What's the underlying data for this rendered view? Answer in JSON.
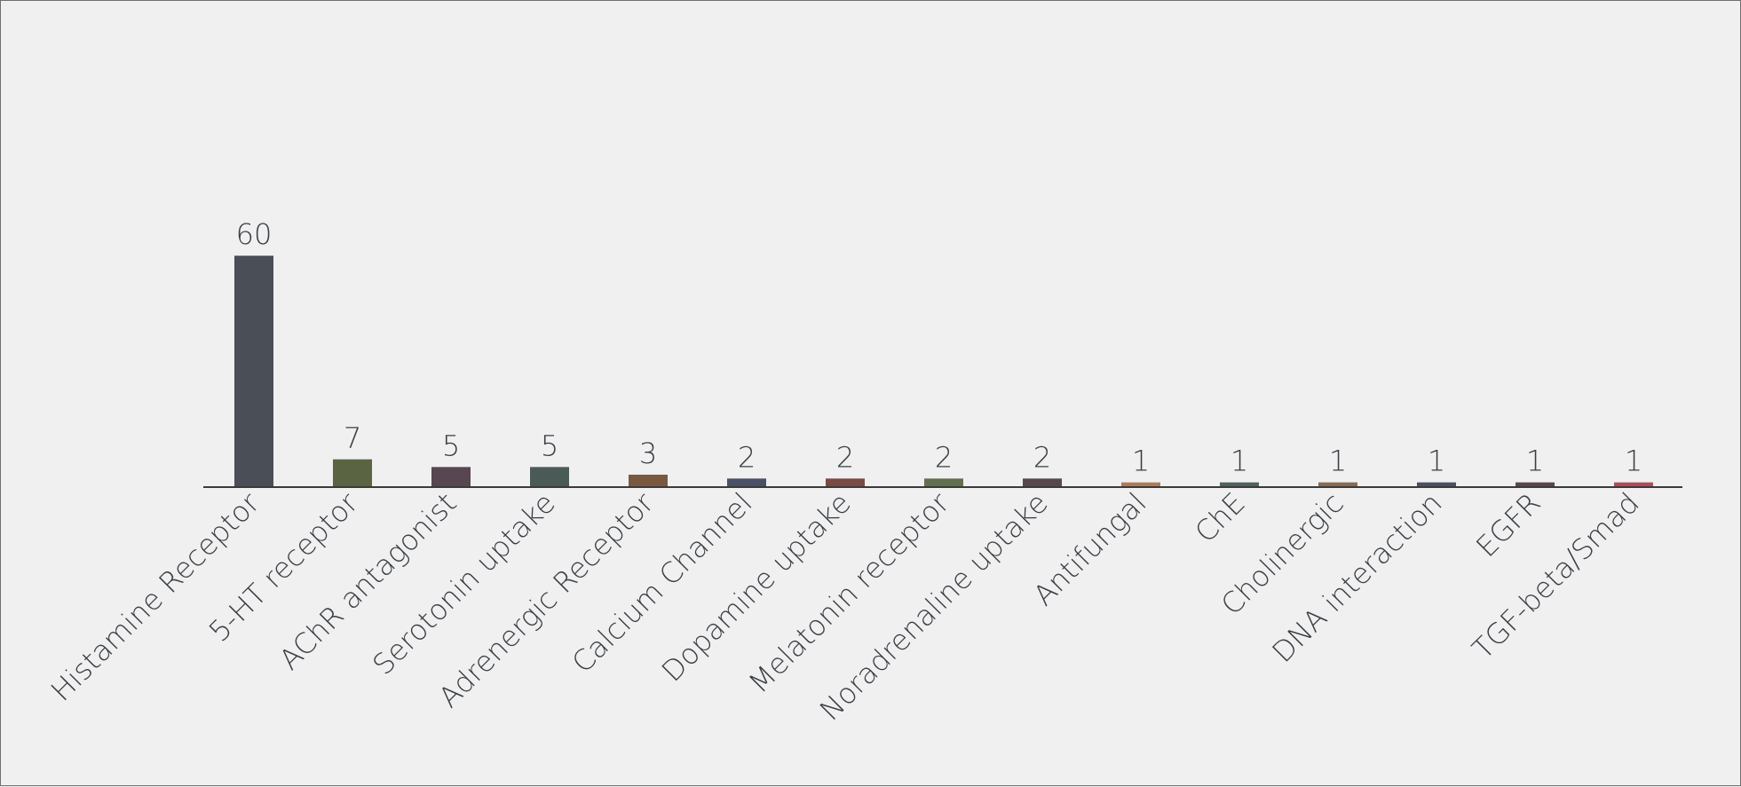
{
  "chart_data": {
    "type": "bar",
    "categories": [
      "Histamine Receptor",
      "5-HT receptor",
      "AChR antagonist",
      "Serotonin uptake",
      "Adrenergic Receptor",
      "Calcium Channel",
      "Dopamine uptake",
      "Melatonin receptor",
      "Noradrenaline uptake",
      "Antifungal",
      "ChE",
      "Cholinergic",
      "DNA interaction",
      "EGFR",
      "TGF-beta/Smad"
    ],
    "values": [
      60,
      7,
      5,
      5,
      3,
      2,
      2,
      2,
      2,
      1,
      1,
      1,
      1,
      1,
      1
    ],
    "colors": [
      "#4a4e57",
      "#5b6442",
      "#584650",
      "#4a5a57",
      "#7a5840",
      "#4a5066",
      "#7a4a44",
      "#627050",
      "#58474f",
      "#b07a5a",
      "#4e6260",
      "#8a6a52",
      "#4a5062",
      "#5a4450",
      "#b04c58"
    ],
    "data_labels_shown": true,
    "ylim": [
      0,
      60
    ],
    "grid": false,
    "legend": "none"
  }
}
